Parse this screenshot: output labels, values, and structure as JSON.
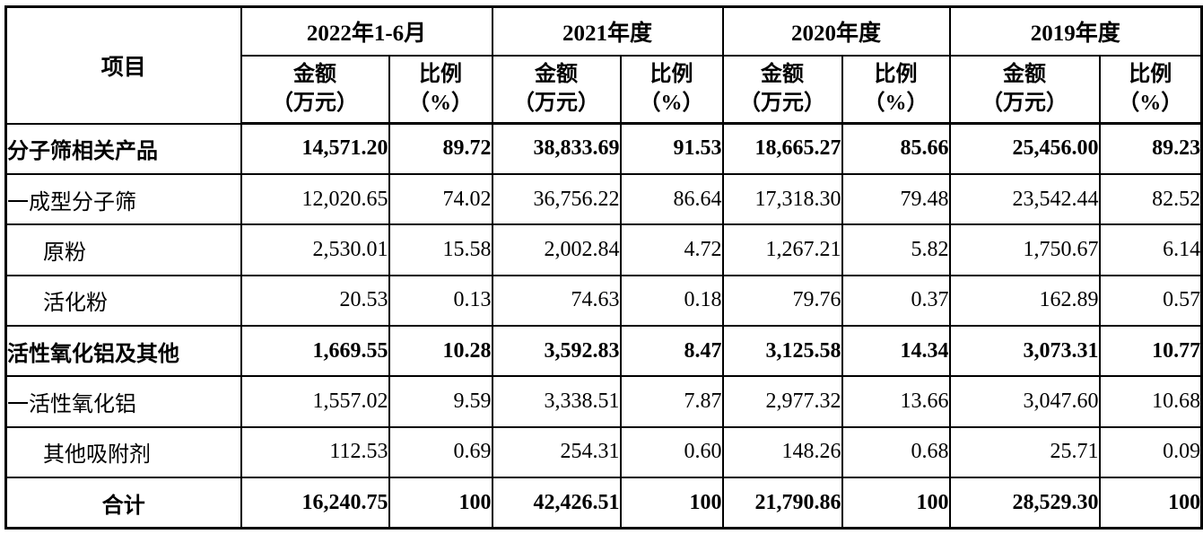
{
  "table": {
    "item_header": "项目",
    "period_groups": [
      {
        "label": "2022年1-6月"
      },
      {
        "label": "2021年度"
      },
      {
        "label": "2020年度"
      },
      {
        "label": "2019年度"
      }
    ],
    "sub_headers": {
      "amount_line1": "金额",
      "amount_line2": "（万元）",
      "ratio_line1": "比例",
      "ratio_line2": "（%）"
    },
    "rows": [
      {
        "name": "分子筛相关产品",
        "bold": true,
        "indent": 0,
        "align": "left",
        "values": [
          "14,571.20",
          "89.72",
          "38,833.69",
          "91.53",
          "18,665.27",
          "85.66",
          "25,456.00",
          "89.23"
        ]
      },
      {
        "name": "一成型分子筛",
        "bold": false,
        "indent": 0,
        "align": "left",
        "values": [
          "12,020.65",
          "74.02",
          "36,756.22",
          "86.64",
          "17,318.30",
          "79.48",
          "23,542.44",
          "82.52"
        ]
      },
      {
        "name": "原粉",
        "bold": false,
        "indent": 1,
        "align": "left",
        "values": [
          "2,530.01",
          "15.58",
          "2,002.84",
          "4.72",
          "1,267.21",
          "5.82",
          "1,750.67",
          "6.14"
        ]
      },
      {
        "name": "活化粉",
        "bold": false,
        "indent": 1,
        "align": "left",
        "values": [
          "20.53",
          "0.13",
          "74.63",
          "0.18",
          "79.76",
          "0.37",
          "162.89",
          "0.57"
        ]
      },
      {
        "name": "活性氧化铝及其他",
        "bold": true,
        "indent": 0,
        "align": "left",
        "values": [
          "1,669.55",
          "10.28",
          "3,592.83",
          "8.47",
          "3,125.58",
          "14.34",
          "3,073.31",
          "10.77"
        ]
      },
      {
        "name": "一活性氧化铝",
        "bold": false,
        "indent": 0,
        "align": "left",
        "values": [
          "1,557.02",
          "9.59",
          "3,338.51",
          "7.87",
          "2,977.32",
          "13.66",
          "3,047.60",
          "10.68"
        ]
      },
      {
        "name": "其他吸附剂",
        "bold": false,
        "indent": 1,
        "align": "left",
        "values": [
          "112.53",
          "0.69",
          "254.31",
          "0.60",
          "148.26",
          "0.68",
          "25.71",
          "0.09"
        ]
      },
      {
        "name": "合计",
        "bold": true,
        "indent": 0,
        "align": "center",
        "values": [
          "16,240.75",
          "100",
          "42,426.51",
          "100",
          "21,790.86",
          "100",
          "28,529.30",
          "100"
        ]
      }
    ]
  }
}
